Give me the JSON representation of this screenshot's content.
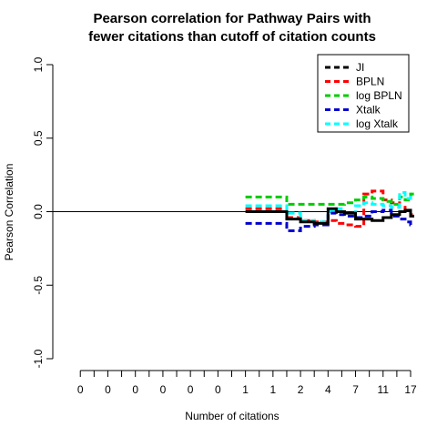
{
  "chart_data": {
    "type": "line",
    "title": [
      "Pearson correlation for Pathway Pairs with",
      "fewer citations than cutoff of citation counts"
    ],
    "xlabel": "Number of citations",
    "ylabel": "Pearson Correlation",
    "xlim": [
      -1,
      12
    ],
    "ylim": [
      -1.0,
      1.0
    ],
    "xtick_labels": [
      "0",
      "0",
      "0",
      "0",
      "0",
      "0",
      "1",
      "1",
      "2",
      "4",
      "7",
      "11",
      "17"
    ],
    "ytick_labels": [
      "-1.0",
      "-0.5",
      "0.0",
      "0.5",
      "1.0"
    ],
    "ytick_values": [
      -1.0,
      -0.5,
      0.0,
      0.5,
      1.0
    ],
    "reference_line_y": 0.0,
    "legend_position": "top-right",
    "series": [
      {
        "name": "JI",
        "color": "#000000",
        "x": [
          6.0,
          6.5,
          7.0,
          7.5,
          8.0,
          8.5,
          9.0,
          9.3,
          9.6,
          10.0,
          10.3,
          10.6,
          11.0,
          11.3,
          11.6,
          11.8,
          12.0
        ],
        "y": [
          0.0,
          0.0,
          0.0,
          -0.05,
          -0.07,
          -0.08,
          0.02,
          0.0,
          -0.01,
          -0.05,
          -0.05,
          -0.06,
          -0.04,
          -0.02,
          0.0,
          0.01,
          -0.03
        ]
      },
      {
        "name": "BPLN",
        "color": "#ff0000",
        "x": [
          6.0,
          6.5,
          7.0,
          7.5,
          8.0,
          8.5,
          9.0,
          9.3,
          9.6,
          10.0,
          10.3,
          10.6,
          11.0,
          11.3,
          11.6,
          11.8,
          12.0
        ],
        "y": [
          0.02,
          0.02,
          0.02,
          -0.04,
          -0.06,
          -0.07,
          -0.06,
          -0.08,
          -0.09,
          -0.1,
          0.12,
          0.14,
          0.08,
          0.06,
          0.03,
          0.0,
          -0.02
        ]
      },
      {
        "name": "log BPLN",
        "color": "#00cc00",
        "x": [
          6.0,
          6.5,
          7.0,
          7.5,
          8.0,
          8.5,
          9.0,
          9.3,
          9.6,
          10.0,
          10.3,
          10.6,
          11.0,
          11.3,
          11.6,
          11.8,
          12.0
        ],
        "y": [
          0.1,
          0.1,
          0.1,
          0.05,
          0.05,
          0.05,
          0.05,
          0.05,
          0.06,
          0.08,
          0.1,
          0.09,
          0.07,
          0.05,
          0.1,
          0.08,
          0.12
        ]
      },
      {
        "name": "Xtalk",
        "color": "#0000cc",
        "x": [
          6.0,
          6.5,
          7.0,
          7.5,
          8.0,
          8.5,
          9.0,
          9.3,
          9.6,
          10.0,
          10.3,
          10.6,
          11.0,
          11.3,
          11.6,
          11.8,
          12.0
        ],
        "y": [
          -0.08,
          -0.08,
          -0.08,
          -0.13,
          -0.1,
          -0.09,
          -0.01,
          -0.02,
          -0.03,
          -0.04,
          -0.03,
          0.0,
          0.01,
          -0.03,
          -0.05,
          -0.07,
          -0.09
        ]
      },
      {
        "name": "log Xtalk",
        "color": "#00ffff",
        "x": [
          6.0,
          6.5,
          7.0,
          7.5,
          8.0,
          8.5,
          9.0,
          9.3,
          9.6,
          10.0,
          10.3,
          10.6,
          11.0,
          11.3,
          11.6,
          11.8,
          12.0
        ],
        "y": [
          0.04,
          0.04,
          0.04,
          -0.01,
          -0.06,
          -0.07,
          0.0,
          0.02,
          -0.01,
          0.04,
          0.06,
          0.05,
          0.04,
          0.03,
          0.13,
          0.09,
          0.1
        ]
      }
    ]
  }
}
